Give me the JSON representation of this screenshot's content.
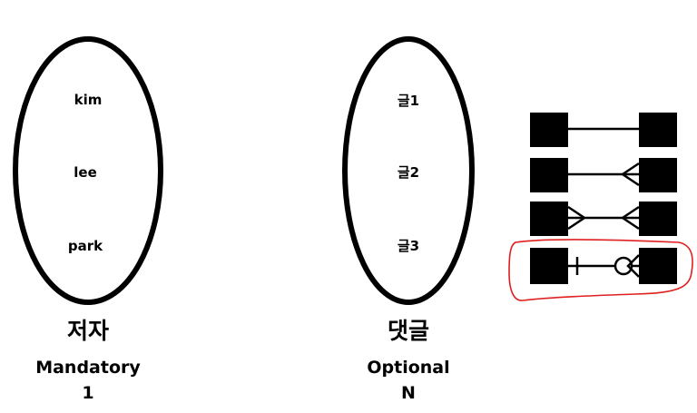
{
  "left_set": {
    "items": [
      "kim",
      "lee",
      "park"
    ],
    "title": "저자",
    "participation": "Mandatory",
    "cardinality": "1"
  },
  "right_set": {
    "items": [
      "글1",
      "글2",
      "글3"
    ],
    "title": "댓글",
    "participation": "Optional",
    "cardinality": "N"
  },
  "legend": {
    "rows": [
      {
        "left_end": "none",
        "right_end": "none"
      },
      {
        "left_end": "none",
        "right_end": "crowfoot"
      },
      {
        "left_end": "crowfoot",
        "right_end": "crowfoot"
      },
      {
        "left_end": "one-mandatory",
        "right_end": "zero-many",
        "highlighted": true
      }
    ],
    "highlight_color": "#e02020"
  }
}
